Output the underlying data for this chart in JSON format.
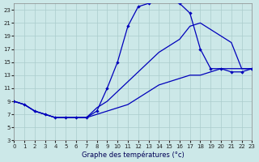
{
  "title": "Graphe des températures (°c)",
  "background_color": "#cce8e8",
  "grid_color": "#aacccc",
  "line_color": "#0000bb",
  "xlim": [
    0,
    23
  ],
  "ylim": [
    3,
    24
  ],
  "xticks": [
    0,
    1,
    2,
    3,
    4,
    5,
    6,
    7,
    8,
    9,
    10,
    11,
    12,
    13,
    14,
    15,
    16,
    17,
    18,
    19,
    20,
    21,
    22,
    23
  ],
  "yticks": [
    3,
    5,
    7,
    9,
    11,
    13,
    15,
    17,
    19,
    21,
    23
  ],
  "curve1_x": [
    0,
    1,
    2,
    3,
    4,
    5,
    6,
    7,
    8,
    9,
    10,
    11,
    12,
    13,
    14,
    15,
    16,
    17,
    18,
    19,
    20,
    21,
    22,
    23
  ],
  "curve1_y": [
    9,
    8.5,
    7.5,
    7,
    6.5,
    6.5,
    6.5,
    6.5,
    7.5,
    11,
    15,
    20.5,
    23.5,
    24,
    24.5,
    24.5,
    24,
    22.5,
    17,
    14,
    14,
    13.5,
    13.5,
    14
  ],
  "curve2_x": [
    0,
    1,
    2,
    3,
    4,
    5,
    6,
    7,
    8,
    9,
    10,
    11,
    12,
    13,
    14,
    15,
    16,
    17,
    18,
    19,
    20,
    21,
    22,
    23
  ],
  "curve2_y": [
    9,
    8.5,
    7.5,
    7,
    6.5,
    6.5,
    6.5,
    6.5,
    8,
    9,
    10.5,
    12,
    13.5,
    15,
    16.5,
    17.5,
    18.5,
    20.5,
    21,
    20,
    19,
    18,
    14,
    14
  ],
  "curve3_x": [
    0,
    1,
    2,
    3,
    4,
    5,
    6,
    7,
    8,
    9,
    10,
    11,
    12,
    13,
    14,
    15,
    16,
    17,
    18,
    19,
    20,
    21,
    22,
    23
  ],
  "curve3_y": [
    9,
    8.5,
    7.5,
    7,
    6.5,
    6.5,
    6.5,
    6.5,
    7,
    7.5,
    8,
    8.5,
    9.5,
    10.5,
    11.5,
    12,
    12.5,
    13,
    13,
    13.5,
    14,
    14,
    14,
    14
  ]
}
